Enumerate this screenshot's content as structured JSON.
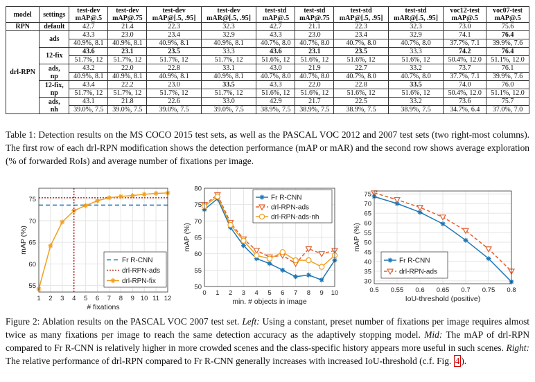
{
  "table": {
    "headers": [
      {
        "l1": "model",
        "l2": ""
      },
      {
        "l1": "settings",
        "l2": ""
      },
      {
        "l1": "test-dev",
        "l2": "mAP@.5"
      },
      {
        "l1": "test-dev",
        "l2": "mAP@.75"
      },
      {
        "l1": "test-dev",
        "l2": "mAP@[.5, .95]"
      },
      {
        "l1": "test-dev",
        "l2": "mAR@[.5, .95]"
      },
      {
        "l1": "test-std",
        "l2": "mAP@.5"
      },
      {
        "l1": "test-std",
        "l2": "mAP@.75"
      },
      {
        "l1": "test-std",
        "l2": "mAP@[.5, .95]"
      },
      {
        "l1": "test-std",
        "l2": "mAR@[.5, .95]"
      },
      {
        "l1": "voc12-test",
        "l2": "mAP@.5"
      },
      {
        "l1": "voc07-test",
        "l2": "mAP@.5"
      }
    ],
    "rpn_row": {
      "model": "RPN",
      "setting": "default",
      "values": [
        "42.7",
        "21.4",
        "22.3",
        "32.3",
        "42.7",
        "21.1",
        "22.3",
        "32.3",
        "73.0",
        "75.6"
      ]
    },
    "drl_label": "drl-RPN",
    "drl_groups": [
      {
        "settings": [
          "ads",
          ""
        ],
        "r1": [
          "43.3",
          "23.0",
          "23.4",
          "32.9",
          "43.3",
          "23.0",
          "23.4",
          "32.9",
          "74.1",
          "76.4"
        ],
        "r2": [
          "40.9%, 8.1",
          "40.9%, 8.1",
          "40.9%, 8.1",
          "40.9%, 8.1",
          "40.7%, 8.0",
          "40.7%, 8.0",
          "40.7%, 8.0",
          "40.7%, 8.0",
          "37.7%, 7.1",
          "39.9%, 7.6"
        ],
        "bold": [
          9
        ]
      },
      {
        "settings": [
          "12-fix",
          ""
        ],
        "r1": [
          "43.6",
          "23.1",
          "23.5",
          "33.3",
          "43.6",
          "23.1",
          "23.5",
          "33.3",
          "74.2",
          "76.4"
        ],
        "r2": [
          "51.7%, 12",
          "51.7%, 12",
          "51.7%, 12",
          "51.7%, 12",
          "51.6%, 12",
          "51.6%, 12",
          "51.6%, 12",
          "51.6%, 12",
          "50.4%, 12.0",
          "51.1%, 12.0"
        ],
        "bold": [
          0,
          1,
          2,
          4,
          5,
          6,
          8,
          9
        ]
      },
      {
        "settings": [
          "ads,",
          "np"
        ],
        "r1": [
          "43.2",
          "22.0",
          "22.8",
          "33.1",
          "43.0",
          "21.9",
          "22.7",
          "33.2",
          "73.7",
          "76.1"
        ],
        "r2": [
          "40.9%, 8.1",
          "40.9%, 8.1",
          "40.9%, 8.1",
          "40.9%, 8.1",
          "40.7%, 8.0",
          "40.7%, 8.0",
          "40.7%, 8.0",
          "40.7%, 8.0",
          "37.7%, 7.1",
          "39.9%, 7.6"
        ],
        "bold": []
      },
      {
        "settings": [
          "12-fix,",
          "np"
        ],
        "r1": [
          "43.4",
          "22.2",
          "23.0",
          "33.5",
          "43.3",
          "22.0",
          "22.8",
          "33.5",
          "74.0",
          "76.0"
        ],
        "r2": [
          "51.7%, 12",
          "51.7%, 12",
          "51.7%, 12",
          "51.7%, 12",
          "51.6%, 12",
          "51.6%, 12",
          "51.6%, 12",
          "51.6%, 12",
          "50.4%, 12.0",
          "51.1%, 12.0"
        ],
        "bold": [
          3,
          7
        ]
      },
      {
        "settings": [
          "ads,",
          "nh"
        ],
        "r1": [
          "43.1",
          "21.8",
          "22.6",
          "33.0",
          "42.9",
          "21.7",
          "22.5",
          "33.2",
          "73.6",
          "75.7"
        ],
        "r2": [
          "39.0%, 7.5",
          "39.0%, 7.5",
          "39.0%, 7.5",
          "39.0%, 7.5",
          "38.9%, 7.5",
          "38.9%, 7.5",
          "38.9%, 7.5",
          "38.9%, 7.5",
          "34.7%, 6.4",
          "37.0%, 7.0"
        ],
        "bold": []
      }
    ]
  },
  "table_caption": "Table 1: Detection results on the MS COCO 2015 test sets, as well as the PASCAL VOC 2012 and 2007 test sets (two right-most columns). The first row of each drl-RPN modification shows the detection performance (mAP or mAR) and the second row shows average exploration (% of forwarded RoIs) and average number of fixations per image.",
  "figure_caption": {
    "prefix": "Figure 2: Ablation results on the PASCAL VOC 2007 test set.",
    "left_label": "Left:",
    "left_text": "Using a constant, preset number of fixations per image requires almost twice as many fixations per image to reach the same detection accuracy as the adaptively stopping model.",
    "mid_label": "Mid:",
    "mid_text": "The mAP of drl-RPN compared to Fr R-CNN is relatively higher in more crowded scenes and the class-specific history appears more useful in such scenes.",
    "right_label": "Right:",
    "right_text": "The relative performance of drl-RPN compared to Fr R-CNN generally increases with increased IoU-threshold (c.f. Fig.",
    "ref": "4",
    "end": ")."
  },
  "chart_data": [
    {
      "type": "line",
      "xlabel": "# fixations",
      "ylabel": "mAP (%)",
      "xlim": [
        1,
        12
      ],
      "ylim": [
        53.5,
        77.5
      ],
      "xticks": [
        1,
        2,
        3,
        4,
        5,
        6,
        7,
        8,
        9,
        10,
        11,
        12
      ],
      "yticks": [
        55,
        60,
        65,
        70,
        75
      ],
      "grid": true,
      "legend_position": "bottom-right",
      "series": [
        {
          "name": "Fr R-CNN",
          "style": "hline",
          "value": 73.6,
          "color": "#1f77b4",
          "dash": "6,4"
        },
        {
          "name": "drl-RPN-ads",
          "style": "hline",
          "value": 75.3,
          "color": "#c0392b",
          "dash": "2,2"
        },
        {
          "name": "drl-RPN-fix",
          "style": "line",
          "marker": "star",
          "color": "#f0a020",
          "x": [
            1,
            2,
            3,
            4,
            5,
            6,
            7,
            8,
            9,
            10,
            11,
            12
          ],
          "values": [
            54.2,
            64.2,
            69.7,
            72.3,
            73.5,
            74.6,
            75.3,
            75.6,
            75.8,
            76.1,
            76.3,
            76.4
          ]
        }
      ],
      "vline": {
        "x": 4,
        "color": "#b00000"
      }
    },
    {
      "type": "line",
      "xlabel": "min. # objects in image",
      "ylabel": "mAP (%)",
      "xlim": [
        0,
        10
      ],
      "ylim": [
        50,
        80
      ],
      "xticks": [
        0,
        1,
        2,
        3,
        4,
        5,
        6,
        7,
        8,
        9,
        10
      ],
      "yticks": [
        50,
        55,
        60,
        65,
        70,
        75,
        80
      ],
      "grid": true,
      "legend_position": "top-right",
      "series": [
        {
          "name": "Fr R-CNN",
          "style": "line",
          "marker": "star",
          "color": "#1f77b4",
          "dash": "",
          "x": [
            0,
            1,
            2,
            3,
            4,
            5,
            6,
            7,
            8,
            9,
            10
          ],
          "values": [
            73.5,
            76.8,
            68.0,
            62.5,
            58.5,
            57.0,
            55.0,
            53.0,
            53.5,
            52.0,
            58.0
          ]
        },
        {
          "name": "drl-RPN-ads",
          "style": "line",
          "marker": "tri",
          "color": "#e06030",
          "dash": "5,3",
          "x": [
            0,
            1,
            2,
            3,
            4,
            5,
            6,
            7,
            8,
            9,
            10
          ],
          "values": [
            75.0,
            78.0,
            69.5,
            64.5,
            61.0,
            59.0,
            59.5,
            57.0,
            61.5,
            60.0,
            61.0
          ]
        },
        {
          "name": "drl-RPN-ads-nh",
          "style": "line",
          "marker": "circle",
          "color": "#f0a020",
          "dash": "",
          "x": [
            0,
            1,
            2,
            3,
            4,
            5,
            6,
            7,
            8,
            9,
            10
          ],
          "values": [
            74.5,
            77.5,
            68.8,
            64.0,
            59.5,
            58.5,
            60.5,
            58.0,
            58.0,
            56.0,
            59.5
          ]
        }
      ]
    },
    {
      "type": "line",
      "xlabel": "IoU-threshold (positive)",
      "ylabel": "mAP (%)",
      "xlim": [
        0.5,
        0.8
      ],
      "ylim": [
        28.5,
        76.5
      ],
      "xticks": [
        0.5,
        0.55,
        0.6,
        0.65,
        0.7,
        0.75,
        0.8
      ],
      "yticks": [
        30,
        35,
        40,
        45,
        50,
        55,
        60,
        65,
        70,
        75
      ],
      "grid": true,
      "legend_position": "middle-left",
      "series": [
        {
          "name": "Fr R-CNN",
          "style": "line",
          "marker": "star",
          "color": "#1f77b4",
          "dash": "",
          "x": [
            0.5,
            0.55,
            0.6,
            0.65,
            0.7,
            0.75,
            0.8
          ],
          "values": [
            73.6,
            70.0,
            65.5,
            59.5,
            51.0,
            41.5,
            29.5
          ]
        },
        {
          "name": "drl-RPN-ads",
          "style": "line",
          "marker": "tri",
          "color": "#e06030",
          "dash": "5,3",
          "x": [
            0.5,
            0.55,
            0.6,
            0.65,
            0.7,
            0.75,
            0.8
          ],
          "values": [
            75.5,
            72.0,
            68.0,
            63.0,
            56.0,
            46.5,
            35.0
          ]
        }
      ]
    }
  ]
}
